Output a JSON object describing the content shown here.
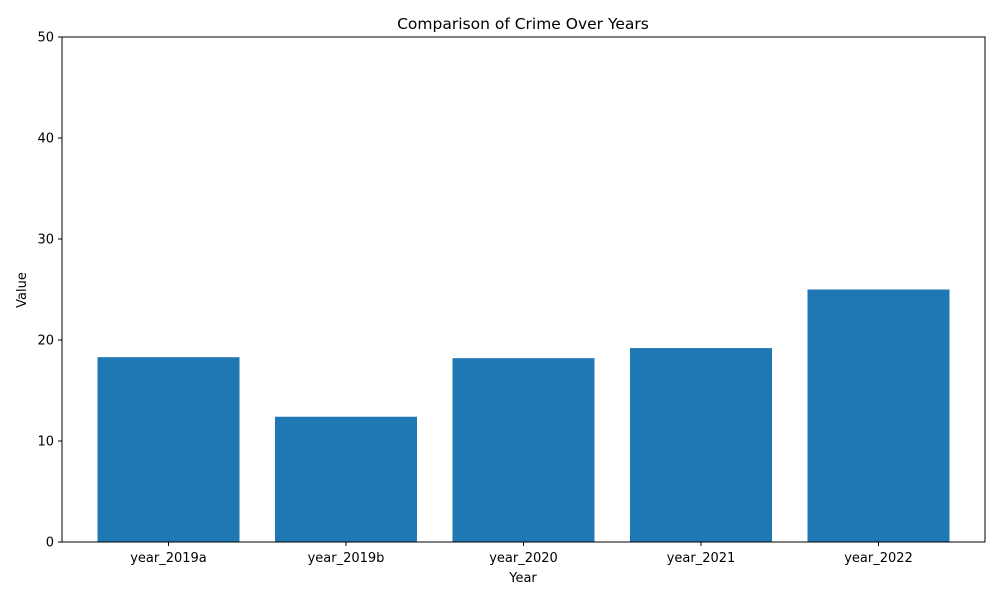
{
  "chart_data": {
    "type": "bar",
    "title": "Comparison of Crime Over Years",
    "xlabel": "Year",
    "ylabel": "Value",
    "categories": [
      "year_2019a",
      "year_2019b",
      "year_2020",
      "year_2021",
      "year_2022"
    ],
    "values": [
      18.3,
      12.4,
      18.2,
      19.2,
      25.0
    ],
    "ylim": [
      0,
      50
    ],
    "yticks": [
      0,
      10,
      20,
      30,
      40,
      50
    ],
    "grid": false,
    "legend": "none",
    "bar_color": "#1f77b4"
  }
}
